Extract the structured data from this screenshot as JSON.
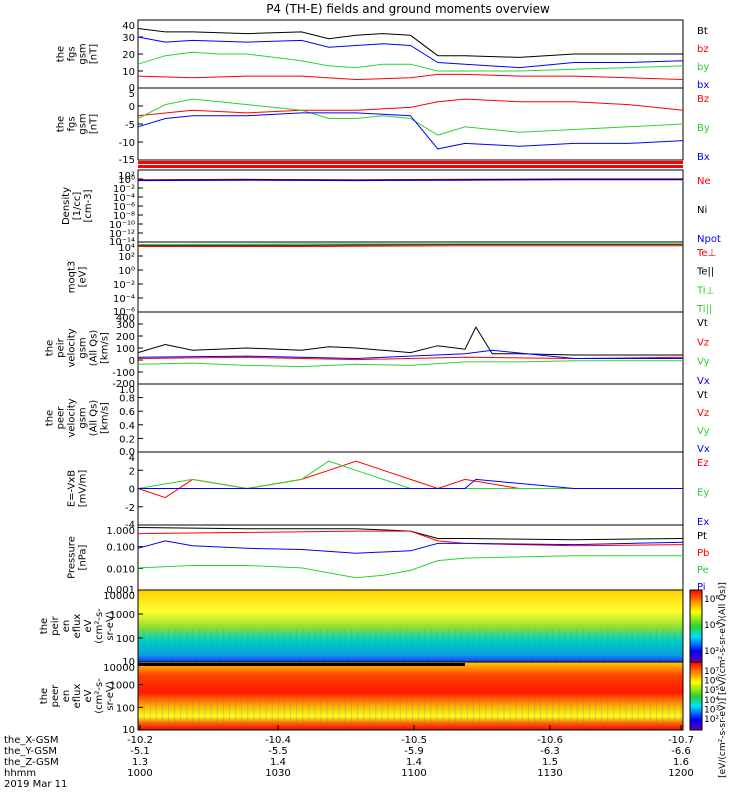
{
  "title": "P4 (TH-E) fields and ground moments overview",
  "colors": {
    "black": "#000000",
    "red": "#ff0000",
    "green": "#2ed12e",
    "blue": "#0000ff"
  },
  "chart_data": [
    {
      "type": "line",
      "ylabel": [
        "the",
        "fgs",
        "gsm",
        "[nT]"
      ],
      "ylim": [
        0,
        40
      ],
      "yticks": [
        "40",
        "30",
        "20",
        "10",
        "0"
      ],
      "legend": [
        {
          "name": "Bt",
          "color": "#000000"
        },
        {
          "name": "bz",
          "color": "#ff0000"
        },
        {
          "name": "by",
          "color": "#2ed12e"
        },
        {
          "name": "bx",
          "color": "#0000ff"
        }
      ],
      "series": [
        {
          "name": "Bt",
          "color": "#000000",
          "x": [
            0,
            0.05,
            0.1,
            0.2,
            0.3,
            0.35,
            0.4,
            0.45,
            0.5,
            0.55,
            0.6,
            0.7,
            0.8,
            0.9,
            1
          ],
          "values": [
            35,
            33,
            33,
            32,
            33,
            29,
            31,
            32,
            31,
            19,
            19,
            18,
            20,
            20,
            20
          ]
        },
        {
          "name": "bz",
          "color": "#ff0000",
          "x": [
            0,
            0.1,
            0.2,
            0.3,
            0.4,
            0.5,
            0.55,
            0.6,
            0.7,
            0.8,
            0.9,
            1
          ],
          "values": [
            7,
            6,
            7,
            7,
            5,
            6,
            8,
            8,
            7,
            7,
            6,
            5
          ]
        },
        {
          "name": "by",
          "color": "#2ed12e",
          "x": [
            0,
            0.05,
            0.1,
            0.15,
            0.2,
            0.3,
            0.35,
            0.4,
            0.45,
            0.5,
            0.55,
            0.6,
            0.7,
            0.8,
            0.9,
            1
          ],
          "values": [
            14,
            19,
            21,
            20,
            20,
            16,
            13,
            12,
            14,
            14,
            10,
            10,
            10,
            11,
            12,
            13
          ]
        },
        {
          "name": "bx",
          "color": "#0000ff",
          "x": [
            0,
            0.05,
            0.1,
            0.2,
            0.3,
            0.35,
            0.4,
            0.45,
            0.5,
            0.55,
            0.6,
            0.7,
            0.8,
            0.9,
            1
          ],
          "values": [
            30,
            27,
            28,
            27,
            28,
            24,
            25,
            26,
            25,
            15,
            14,
            12,
            15,
            15,
            16
          ]
        }
      ]
    },
    {
      "type": "line",
      "ylabel": [
        "the",
        "fgs",
        "gsm",
        "[nT]"
      ],
      "ylim": [
        -18,
        8
      ],
      "yticks": [
        "5",
        "0",
        "-5",
        "-10",
        "-15"
      ],
      "yvals": [
        5,
        0,
        -5,
        -10,
        -15
      ],
      "legend": [
        {
          "name": "Bz",
          "color": "#ff0000"
        },
        {
          "name": "By",
          "color": "#2ed12e"
        },
        {
          "name": "Bx",
          "color": "#0000ff"
        }
      ],
      "series": [
        {
          "name": "Bz",
          "color": "#ff0000",
          "x": [
            0,
            0.1,
            0.2,
            0.3,
            0.4,
            0.5,
            0.55,
            0.6,
            0.7,
            0.8,
            0.9,
            1
          ],
          "values": [
            -2,
            0,
            -1,
            0,
            0,
            1,
            3,
            4,
            3,
            3,
            2,
            0
          ]
        },
        {
          "name": "By",
          "color": "#2ed12e",
          "x": [
            0,
            0.05,
            0.1,
            0.15,
            0.2,
            0.25,
            0.3,
            0.35,
            0.4,
            0.45,
            0.5,
            0.55,
            0.6,
            0.7,
            0.8,
            0.9,
            1
          ],
          "values": [
            -3,
            2,
            4,
            3,
            2,
            1,
            0,
            -3,
            -3,
            -2,
            -3,
            -9,
            -6,
            -8,
            -7,
            -6,
            -5
          ]
        },
        {
          "name": "Bx",
          "color": "#0000ff",
          "x": [
            0,
            0.05,
            0.1,
            0.2,
            0.3,
            0.4,
            0.5,
            0.55,
            0.6,
            0.7,
            0.8,
            0.9,
            1
          ],
          "values": [
            -6,
            -3,
            -2,
            -2,
            -1,
            -1,
            -2,
            -14,
            -12,
            -13,
            -12,
            -12,
            -11
          ]
        }
      ]
    },
    {
      "type": "line",
      "ylabel": [
        "Density",
        "[1/cc]",
        "[cm-3]"
      ],
      "ylim": [
        -14,
        3
      ],
      "log": true,
      "yticks": [
        "10²",
        "10⁰",
        "10⁻²",
        "10⁻⁴",
        "10⁻⁶",
        "10⁻⁸",
        "10⁻¹⁰",
        "10⁻¹²",
        "10⁻¹⁴"
      ],
      "legend": [
        {
          "name": "Ne",
          "color": "#ff0000"
        },
        {
          "name": "Ni",
          "color": "#000000"
        },
        {
          "name": "Npot",
          "color": "#0000ff"
        }
      ],
      "series": [
        {
          "name": "Ne",
          "color": "#ff0000",
          "x": [
            0,
            0.2,
            0.4,
            0.6,
            0.8,
            1
          ],
          "values": [
            0.7,
            0.8,
            0.7,
            0.8,
            0.9,
            0.9
          ]
        },
        {
          "name": "Ni",
          "color": "#000000",
          "x": [
            0,
            0.2,
            0.4,
            0.6,
            0.8,
            1
          ],
          "values": [
            0.6,
            0.7,
            0.6,
            0.7,
            0.8,
            0.8
          ]
        },
        {
          "name": "Npot",
          "color": "#0000ff",
          "x": [
            0,
            0.2,
            0.4,
            0.6,
            0.8,
            1
          ],
          "values": [
            0.5,
            0.6,
            0.5,
            0.6,
            0.7,
            0.7
          ]
        }
      ]
    },
    {
      "type": "line",
      "ylabel": [
        "moqt3",
        "[eV]"
      ],
      "ylim": [
        -7,
        4
      ],
      "log": true,
      "yticks": [
        "10⁴",
        "10²",
        "10⁰",
        "10⁻²",
        "10⁻⁴",
        "10⁻⁶"
      ],
      "legend": [
        {
          "name": "Te⊥",
          "color": "#ff0000"
        },
        {
          "name": "Te||",
          "color": "#000000"
        },
        {
          "name": "Ti⊥",
          "color": "#2ed12e"
        },
        {
          "name": "Ti||",
          "color": "#2ed12e"
        }
      ],
      "series": [
        {
          "name": "Te",
          "color": "#ff0000",
          "x": [
            0,
            0.3,
            0.6,
            1
          ],
          "values": [
            3.3,
            3.3,
            3.4,
            3.4
          ]
        },
        {
          "name": "Ti",
          "color": "#000000",
          "x": [
            0,
            0.3,
            0.6,
            1
          ],
          "values": [
            3.5,
            3.5,
            3.6,
            3.6
          ]
        },
        {
          "name": "Ti2",
          "color": "#2ed12e",
          "x": [
            0,
            0.3,
            0.6,
            1
          ],
          "values": [
            3.6,
            3.7,
            3.7,
            3.7
          ]
        }
      ]
    },
    {
      "type": "line",
      "ylabel": [
        "the",
        "peir",
        "velocity",
        "gsm",
        "(All Qs)",
        "[km/s]"
      ],
      "ylim": [
        -210,
        410
      ],
      "yticks": [
        "400",
        "300",
        "200",
        "100",
        "0",
        "-100",
        "-200"
      ],
      "yvals": [
        400,
        300,
        200,
        100,
        0,
        -100,
        -200
      ],
      "legend": [
        {
          "name": "Vt",
          "color": "#000000"
        },
        {
          "name": "Vz",
          "color": "#ff0000"
        },
        {
          "name": "Vy",
          "color": "#2ed12e"
        },
        {
          "name": "Vx",
          "color": "#0000ff"
        }
      ],
      "series": [
        {
          "name": "Vt",
          "color": "#000000",
          "x": [
            0,
            0.05,
            0.1,
            0.2,
            0.3,
            0.35,
            0.4,
            0.45,
            0.5,
            0.55,
            0.6,
            0.62,
            0.65,
            0.7,
            0.8,
            0.9,
            1
          ],
          "values": [
            60,
            130,
            80,
            100,
            80,
            110,
            100,
            80,
            60,
            120,
            90,
            280,
            50,
            50,
            40,
            40,
            40
          ]
        },
        {
          "name": "Vz",
          "color": "#ff0000",
          "x": [
            0,
            0.2,
            0.4,
            0.6,
            0.8,
            1
          ],
          "values": [
            10,
            20,
            0,
            20,
            10,
            20
          ]
        },
        {
          "name": "Vy",
          "color": "#2ed12e",
          "x": [
            0,
            0.1,
            0.2,
            0.3,
            0.4,
            0.5,
            0.6,
            0.7,
            0.8,
            1
          ],
          "values": [
            -40,
            -30,
            -50,
            -60,
            -40,
            -50,
            -20,
            -20,
            -10,
            -10
          ]
        },
        {
          "name": "Vx",
          "color": "#0000ff",
          "x": [
            0,
            0.2,
            0.4,
            0.6,
            0.65,
            0.8,
            1
          ],
          "values": [
            20,
            30,
            10,
            50,
            80,
            10,
            10
          ]
        }
      ]
    },
    {
      "type": "line",
      "ylabel": [
        "the",
        "peer",
        "velocity",
        "gsm",
        "(All Qs)",
        "[km/s]"
      ],
      "ylim": [
        0,
        1
      ],
      "yticks": [
        "1.0",
        "0.8",
        "0.6",
        "0.4",
        "0.2",
        "0.0"
      ],
      "yvals": [
        1,
        0.8,
        0.6,
        0.4,
        0.2,
        0
      ],
      "legend": [
        {
          "name": "Vt",
          "color": "#000000"
        },
        {
          "name": "Vz",
          "color": "#ff0000"
        },
        {
          "name": "Vy",
          "color": "#2ed12e"
        },
        {
          "name": "Vx",
          "color": "#0000ff"
        }
      ],
      "series": []
    },
    {
      "type": "line",
      "ylabel": [
        "E=-VxB",
        "[mV/m]"
      ],
      "ylim": [
        -4,
        4
      ],
      "yticks": [
        "4",
        "2",
        "0",
        "-2",
        "-4"
      ],
      "yvals": [
        4,
        2,
        0,
        -2,
        -4
      ],
      "legend": [
        {
          "name": "Ez",
          "color": "#ff0000"
        },
        {
          "name": "Ey",
          "color": "#2ed12e"
        },
        {
          "name": "Ex",
          "color": "#0000ff"
        }
      ],
      "series": [
        {
          "name": "Ez",
          "color": "#ff0000",
          "x": [
            0,
            0.05,
            0.1,
            0.2,
            0.3,
            0.35,
            0.4,
            0.45,
            0.5,
            0.55,
            0.6,
            0.7,
            0.8,
            0.9,
            1
          ],
          "values": [
            0,
            -1,
            1,
            0,
            1,
            2,
            3,
            2,
            1,
            0,
            1,
            0,
            0,
            0,
            0
          ]
        },
        {
          "name": "Ey",
          "color": "#2ed12e",
          "x": [
            0,
            0.1,
            0.2,
            0.3,
            0.35,
            0.4,
            0.45,
            0.5,
            0.6,
            0.7,
            0.8,
            1
          ],
          "values": [
            0,
            1,
            0,
            1,
            3,
            2,
            1,
            0,
            0,
            0,
            0,
            0
          ]
        },
        {
          "name": "Ex",
          "color": "#0000ff",
          "x": [
            0,
            0.2,
            0.4,
            0.6,
            0.62,
            0.8,
            1
          ],
          "values": [
            0,
            0,
            0,
            0,
            1,
            0,
            0
          ]
        }
      ]
    },
    {
      "type": "line",
      "ylabel": [
        "Pressure",
        "[nPa]"
      ],
      "ylim": [
        -2.6,
        0.05
      ],
      "log": true,
      "yticks": [
        "1.000",
        "0.100",
        "0.010",
        "0.001"
      ],
      "yvals": [
        0,
        -1,
        -2,
        -3
      ],
      "legend": [
        {
          "name": "Pt",
          "color": "#000000"
        },
        {
          "name": "Pb",
          "color": "#ff0000"
        },
        {
          "name": "Pe",
          "color": "#2ed12e"
        },
        {
          "name": "Pi",
          "color": "#0000ff"
        }
      ],
      "series": [
        {
          "name": "Pt",
          "color": "#000000",
          "x": [
            0,
            0.2,
            0.4,
            0.5,
            0.55,
            0.6,
            0.8,
            1
          ],
          "values": [
            -0.05,
            -0.1,
            -0.1,
            -0.2,
            -0.5,
            -0.5,
            -0.55,
            -0.5
          ]
        },
        {
          "name": "Pb",
          "color": "#ff0000",
          "x": [
            0,
            0.2,
            0.4,
            0.5,
            0.55,
            0.6,
            0.8,
            1
          ],
          "values": [
            -0.3,
            -0.25,
            -0.2,
            -0.2,
            -0.6,
            -0.7,
            -0.8,
            -0.75
          ]
        },
        {
          "name": "Pe",
          "color": "#2ed12e",
          "x": [
            0,
            0.1,
            0.2,
            0.3,
            0.4,
            0.45,
            0.5,
            0.55,
            0.6,
            0.8,
            1
          ],
          "values": [
            -1.7,
            -1.6,
            -1.6,
            -1.7,
            -2.1,
            -2.0,
            -1.8,
            -1.4,
            -1.3,
            -1.2,
            -1.2
          ]
        },
        {
          "name": "Pi",
          "color": "#0000ff",
          "x": [
            0,
            0.05,
            0.1,
            0.2,
            0.3,
            0.4,
            0.5,
            0.55,
            0.6,
            0.8,
            1
          ],
          "values": [
            -0.9,
            -0.6,
            -0.8,
            -0.9,
            -0.95,
            -1.1,
            -1.0,
            -0.7,
            -0.7,
            -0.75,
            -0.65
          ]
        }
      ]
    },
    {
      "type": "heatmap",
      "ylabel": [
        "the",
        "peir",
        "en",
        "eflux",
        "eV",
        "(cm²-s-",
        "sr-eV)"
      ],
      "yticks": [
        "10000",
        "1000",
        "100",
        "10"
      ],
      "colorbar_ticks": [
        "10⁶",
        "10⁴",
        "10²"
      ]
    },
    {
      "type": "heatmap",
      "ylabel": [
        "the",
        "peer",
        "en",
        "eflux",
        "eV",
        "(cm²-s-",
        "sr-eV)"
      ],
      "yticks": [
        "10000",
        "1000",
        "100",
        "10"
      ],
      "colorbar_ticks": [
        "10⁷",
        "10⁶",
        "10⁵",
        "10⁴",
        "10³",
        "10²"
      ]
    }
  ],
  "colorbar_label": "[eV/(cm²-s-sr-eV)] [eV/(cm²-s-sr-eV)(All Qs)]",
  "xaxis": {
    "rows": [
      {
        "label": "the_X-GSM",
        "values": [
          "-10.2",
          "-10.4",
          "-10.5",
          "-10.6",
          "-10.7"
        ]
      },
      {
        "label": "the_Y-GSM",
        "values": [
          "-5.1",
          "-5.5",
          "-5.9",
          "-6.3",
          "-6.6"
        ]
      },
      {
        "label": "the_Z-GSM",
        "values": [
          "1.3",
          "1.4",
          "1.4",
          "1.5",
          "1.6"
        ]
      },
      {
        "label": "hhmm",
        "values": [
          "1000",
          "1030",
          "1100",
          "1130",
          "1200"
        ]
      }
    ],
    "date": "2019 Mar 11"
  }
}
